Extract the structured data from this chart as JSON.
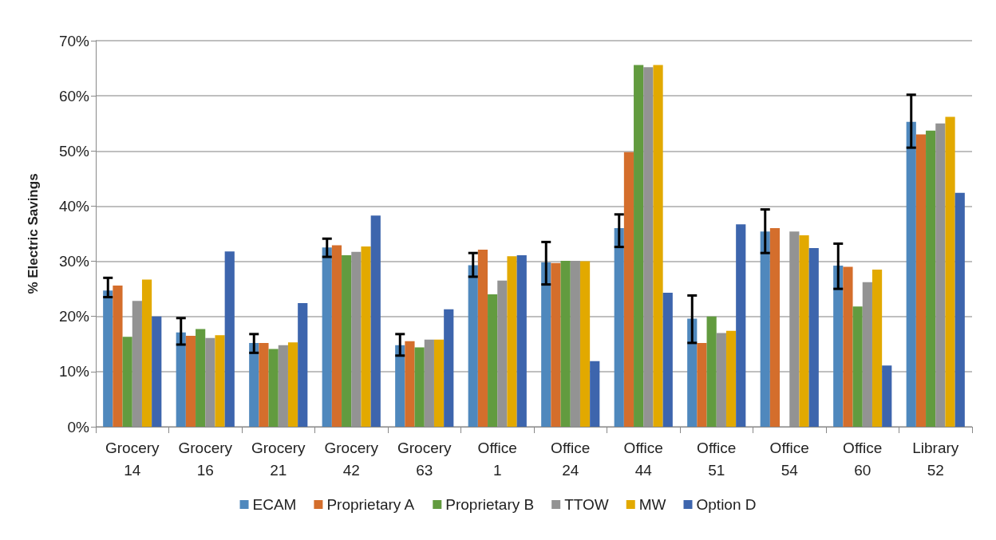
{
  "chart_data": {
    "type": "bar",
    "ylabel": "% Electric Savings",
    "categories": [
      "Grocery\n14",
      "Grocery\n16",
      "Grocery\n21",
      "Grocery\n42",
      "Grocery\n63",
      "Office\n1",
      "Office\n24",
      "Office\n44",
      "Office\n51",
      "Office\n54",
      "Office\n60",
      "Library\n52"
    ],
    "series": [
      {
        "name": "ECAM",
        "color": "#4f88bd",
        "values": [
          24.7,
          17.1,
          15.2,
          32.5,
          14.8,
          29.3,
          29.8,
          36.0,
          19.6,
          35.4,
          29.2,
          55.3
        ],
        "errors": [
          [
            23.5,
            27.0
          ],
          [
            14.9,
            19.7
          ],
          [
            13.4,
            16.8
          ],
          [
            30.8,
            34.1
          ],
          [
            12.9,
            16.8
          ],
          [
            27.2,
            31.5
          ],
          [
            25.8,
            33.5
          ],
          [
            32.6,
            38.5
          ],
          [
            15.2,
            23.8
          ],
          [
            31.5,
            39.4
          ],
          [
            25.0,
            33.2
          ],
          [
            50.6,
            60.2
          ]
        ]
      },
      {
        "name": "Proprietary A",
        "color": "#d46e2c",
        "values": [
          25.6,
          16.5,
          15.2,
          32.9,
          15.5,
          32.1,
          29.7,
          49.8,
          15.2,
          36.0,
          29.0,
          53.0
        ]
      },
      {
        "name": "Proprietary B",
        "color": "#629b3f",
        "values": [
          16.3,
          17.7,
          14.1,
          31.1,
          14.4,
          24.0,
          30.1,
          65.6,
          20.0,
          null,
          21.8,
          53.7
        ]
      },
      {
        "name": "TTOW",
        "color": "#939393",
        "values": [
          22.8,
          16.1,
          14.8,
          31.7,
          15.8,
          26.5,
          30.1,
          65.2,
          17.0,
          35.4,
          26.2,
          55.0
        ]
      },
      {
        "name": "MW",
        "color": "#e2a900",
        "values": [
          26.7,
          16.6,
          15.3,
          32.7,
          15.8,
          30.9,
          30.0,
          65.6,
          17.4,
          34.7,
          28.5,
          56.2
        ]
      },
      {
        "name": "Option D",
        "color": "#3d65ad",
        "values": [
          20.0,
          31.8,
          22.4,
          38.3,
          21.3,
          31.1,
          11.9,
          24.3,
          36.7,
          32.4,
          11.1,
          42.4
        ]
      }
    ],
    "ylim": [
      0,
      70
    ],
    "yticks": [
      {
        "value": 0,
        "label": "0%"
      },
      {
        "value": 10,
        "label": "10%"
      },
      {
        "value": 20,
        "label": "20%"
      },
      {
        "value": 30,
        "label": "30%"
      },
      {
        "value": 40,
        "label": "40%"
      },
      {
        "value": 50,
        "label": "50%"
      },
      {
        "value": 60,
        "label": "60%"
      },
      {
        "value": 70,
        "label": "70%"
      }
    ],
    "grid": "y",
    "legend": "bottom"
  }
}
